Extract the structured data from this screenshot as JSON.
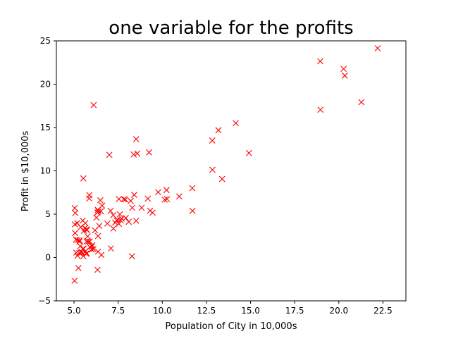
{
  "chart_data": {
    "type": "scatter",
    "title": "one variable for the profits",
    "xlabel": "Population of City in 10,000s",
    "ylabel": "Profit in $10,000s",
    "xlim": [
      4.0,
      23.8
    ],
    "ylim": [
      -5,
      25
    ],
    "xticks": [
      5.0,
      7.5,
      10.0,
      12.5,
      15.0,
      17.5,
      20.0,
      22.5
    ],
    "xtick_labels": [
      "5.0",
      "7.5",
      "10.0",
      "12.5",
      "15.0",
      "17.5",
      "20.0",
      "22.5"
    ],
    "yticks": [
      -5,
      0,
      5,
      10,
      15,
      20,
      25
    ],
    "ytick_labels": [
      "−5",
      "0",
      "5",
      "10",
      "15",
      "20",
      "25"
    ],
    "marker": "x",
    "marker_color": "#ff0000",
    "grid": false,
    "points": [
      [
        6.11,
        17.59
      ],
      [
        5.53,
        9.13
      ],
      [
        8.52,
        13.66
      ],
      [
        7.0,
        11.85
      ],
      [
        5.86,
        6.82
      ],
      [
        8.38,
        11.89
      ],
      [
        7.48,
        4.35
      ],
      [
        8.58,
        12.0
      ],
      [
        6.49,
        6.6
      ],
      [
        5.05,
        3.82
      ],
      [
        5.71,
        3.25
      ],
      [
        14.16,
        15.51
      ],
      [
        5.73,
        3.16
      ],
      [
        8.41,
        7.23
      ],
      [
        5.64,
        0.72
      ],
      [
        5.38,
        3.51
      ],
      [
        6.37,
        5.3
      ],
      [
        5.13,
        0.56
      ],
      [
        6.43,
        3.65
      ],
      [
        7.07,
        5.39
      ],
      [
        6.19,
        3.14
      ],
      [
        20.27,
        21.77
      ],
      [
        5.49,
        4.26
      ],
      [
        6.33,
        5.19
      ],
      [
        5.56,
        3.08
      ],
      [
        18.95,
        22.64
      ],
      [
        12.83,
        13.5
      ],
      [
        10.96,
        7.05
      ],
      [
        13.18,
        14.69
      ],
      [
        22.2,
        24.15
      ],
      [
        5.25,
        -1.22
      ],
      [
        6.59,
        5.99
      ],
      [
        9.25,
        12.13
      ],
      [
        5.89,
        1.85
      ],
      [
        8.21,
        6.54
      ],
      [
        7.93,
        4.56
      ],
      [
        8.1,
        4.12
      ],
      [
        5.61,
        3.39
      ],
      [
        12.84,
        10.12
      ],
      [
        6.35,
        5.5
      ],
      [
        5.41,
        0.56
      ],
      [
        6.89,
        3.92
      ],
      [
        11.71,
        5.39
      ],
      [
        5.77,
        2.44
      ],
      [
        7.82,
        6.73
      ],
      [
        7.09,
        1.05
      ],
      [
        5.07,
        5.13
      ],
      [
        5.8,
        1.84
      ],
      [
        11.7,
        8.0
      ],
      [
        5.54,
        1.02
      ],
      [
        7.54,
        6.75
      ],
      [
        5.31,
        1.84
      ],
      [
        7.42,
        4.29
      ],
      [
        7.6,
        4.99
      ],
      [
        6.03,
        1.42
      ],
      [
        6.33,
        -1.42
      ],
      [
        6.36,
        2.48
      ],
      [
        6.27,
        4.6
      ],
      [
        5.64,
        3.96
      ],
      [
        9.31,
        5.41
      ],
      [
        9.45,
        5.17
      ],
      [
        8.83,
        5.74
      ],
      [
        5.18,
        3.97
      ],
      [
        21.28,
        17.93
      ],
      [
        14.91,
        12.05
      ],
      [
        18.96,
        17.05
      ],
      [
        7.22,
        4.89
      ],
      [
        8.3,
        5.74
      ],
      [
        10.24,
        7.78
      ],
      [
        5.5,
        1.02
      ],
      [
        20.34,
        20.99
      ],
      [
        10.14,
        6.68
      ],
      [
        7.33,
        4.03
      ],
      [
        6.01,
        1.28
      ],
      [
        7.23,
        3.34
      ],
      [
        5.03,
        -2.68
      ],
      [
        6.55,
        0.3
      ],
      [
        7.54,
        3.88
      ],
      [
        5.04,
        5.7
      ],
      [
        10.27,
        6.75
      ],
      [
        5.11,
        2.06
      ],
      [
        5.73,
        0.48
      ],
      [
        5.19,
        0.2
      ],
      [
        6.36,
        0.68
      ],
      [
        9.77,
        7.54
      ],
      [
        6.52,
        5.34
      ],
      [
        8.52,
        4.24
      ],
      [
        9.18,
        6.8
      ],
      [
        6.0,
        0.93
      ],
      [
        5.53,
        0.15
      ],
      [
        5.06,
        2.82
      ],
      [
        5.71,
        1.85
      ],
      [
        7.64,
        4.3
      ],
      [
        5.87,
        7.2
      ],
      [
        5.31,
        1.99
      ],
      [
        8.29,
        0.14
      ],
      [
        13.39,
        9.06
      ],
      [
        5.44,
        0.62
      ],
      [
        5.2,
        2.0
      ],
      [
        5.3,
        0.52
      ],
      [
        5.35,
        1.3
      ],
      [
        5.68,
        0.45
      ],
      [
        5.9,
        1.2
      ],
      [
        6.1,
        0.98
      ],
      [
        7.7,
        4.5
      ],
      [
        7.9,
        6.7
      ]
    ]
  }
}
